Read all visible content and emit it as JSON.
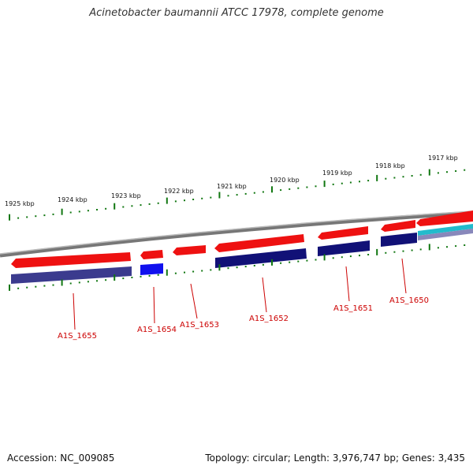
{
  "title": "Acinetobacter baumannii ATCC 17978, complete genome",
  "footer": {
    "accession": "Accession: NC_009085",
    "topology": "Topology: circular; Length: 3,976,747 bp; Genes: 3,435"
  },
  "colors": {
    "forward_gene": "#ee1111",
    "reverse_gene": "#111177",
    "reverse_gene_alt": "#3333aa",
    "highlight_gene": "#1111ee",
    "scale_ticks": "#117711",
    "backbone": "#888888",
    "label_text": "#cc0000",
    "cyan_feature": "#22bbcc"
  },
  "scale": {
    "labels": [
      "1925 kbp",
      "1924 kbp",
      "1923 kbp",
      "1922 kbp",
      "1921 kbp",
      "1920 kbp",
      "1919 kbp",
      "1918 kbp",
      "1917 kbp"
    ]
  },
  "genes": [
    {
      "label": "A1S_1655",
      "strand": "reverse",
      "color_key": "reverse_gene_alt"
    },
    {
      "label": "A1S_1654",
      "strand": "reverse",
      "color_key": "highlight_gene"
    },
    {
      "label": "A1S_1653",
      "strand": "forward",
      "color_key": "forward_gene"
    },
    {
      "label": "A1S_1652",
      "strand": "reverse",
      "color_key": "reverse_gene"
    },
    {
      "label": "A1S_1651",
      "strand": "reverse",
      "color_key": "reverse_gene"
    },
    {
      "label": "A1S_1650",
      "strand": "reverse",
      "color_key": "reverse_gene"
    }
  ]
}
